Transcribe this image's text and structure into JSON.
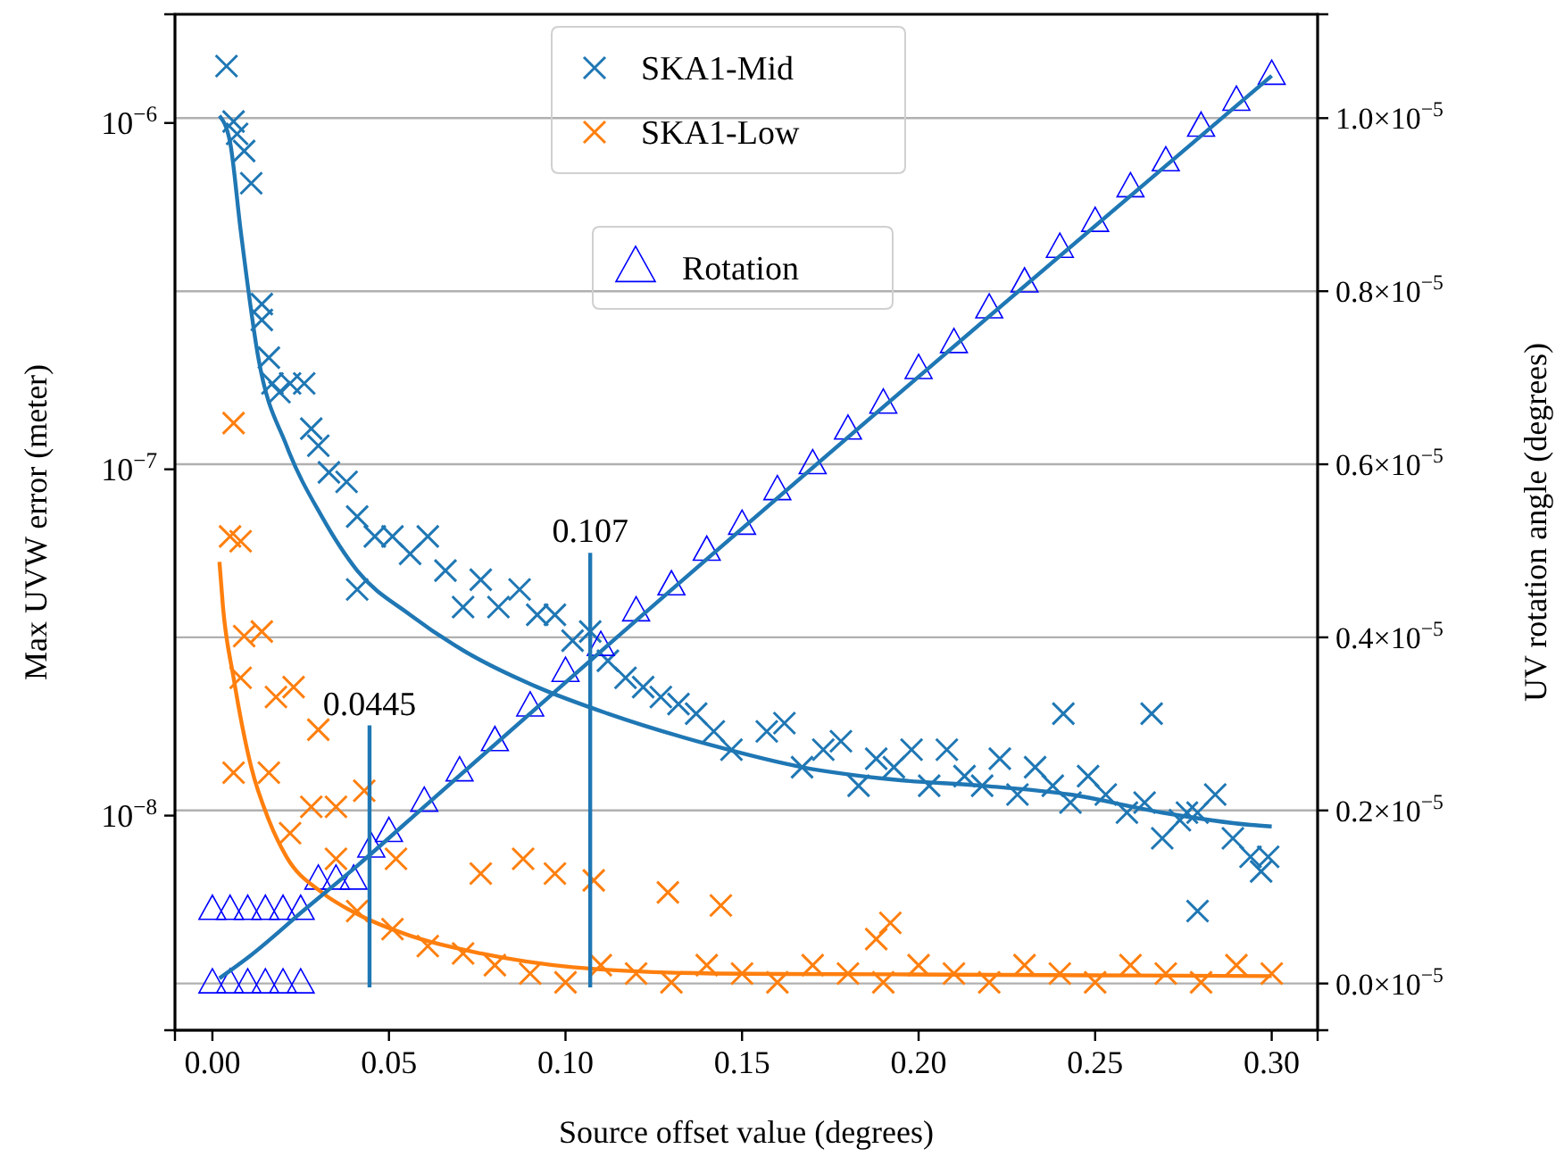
{
  "chart_data": {
    "type": "scatter",
    "xlabel": "Source offset value (degrees)",
    "ylabel": "Max UVW error (meter)",
    "y2label": "UV rotation angle (degrees)",
    "xlim": [
      -0.0106,
      0.313
    ],
    "xticks": [
      {
        "value": 0,
        "label": "0.00"
      },
      {
        "value": 0.05,
        "label": "0.05"
      },
      {
        "value": 0.1,
        "label": "0.10"
      },
      {
        "value": 0.15,
        "label": "0.15"
      },
      {
        "value": 0.2,
        "label": "0.20"
      },
      {
        "value": 0.25,
        "label": "0.25"
      },
      {
        "value": 0.3,
        "label": "0.30"
      }
    ],
    "log": "y",
    "ylim": [
      2.4e-09,
      2.06e-06
    ],
    "yticks": [
      {
        "value": 1e-08,
        "label": "10$^{−8}$"
      },
      {
        "value": 1e-07,
        "label": "10$^{−7}$"
      },
      {
        "value": 1e-06,
        "label": "10$^{−6}$"
      }
    ],
    "y2lim": [
      -5.4e-07,
      1.12e-05
    ],
    "y2ticks": [
      {
        "value": 0,
        "label": "0.0×10$^{−5}$"
      },
      {
        "value": 2e-06,
        "label": "0.2×10$^{−5}$"
      },
      {
        "value": 4e-06,
        "label": "0.4×10$^{−5}$"
      },
      {
        "value": 6e-06,
        "label": "0.6×10$^{−5}$"
      },
      {
        "value": 8e-06,
        "label": "0.8×10$^{−5}$"
      },
      {
        "value": 1e-05,
        "label": "1.0×10$^{−5}$"
      }
    ],
    "grid": "y2",
    "legend": "top",
    "ref_lines": [
      {
        "axis": "x",
        "value": 0.0445,
        "label": "0.0445",
        "color": "#1f77b4"
      },
      {
        "axis": "x",
        "value": 0.107,
        "label": "0.107",
        "color": "#1f77b4"
      }
    ],
    "series": [
      {
        "name": "SKA1-Mid",
        "marker": "cross",
        "color": "#1f77b4",
        "x": [
          0.004,
          0.006,
          0.007,
          0.009,
          0.011,
          0.014,
          0.014,
          0.016,
          0.017,
          0.019,
          0.022,
          0.026,
          0.028,
          0.03,
          0.033,
          0.038,
          0.041,
          0.041,
          0.046,
          0.051,
          0.056,
          0.061,
          0.066,
          0.071,
          0.076,
          0.081,
          0.087,
          0.092,
          0.097,
          0.102,
          0.107,
          0.112,
          0.117,
          0.122,
          0.127,
          0.132,
          0.137,
          0.142,
          0.147,
          0.157,
          0.162,
          0.167,
          0.173,
          0.178,
          0.183,
          0.188,
          0.193,
          0.198,
          0.203,
          0.208,
          0.213,
          0.218,
          0.223,
          0.228,
          0.233,
          0.238,
          0.241,
          0.243,
          0.248,
          0.253,
          0.259,
          0.264,
          0.266,
          0.269,
          0.274,
          0.276,
          0.279,
          0.279,
          0.284,
          0.289,
          0.294,
          0.297,
          0.299
        ],
        "values": [
          1.46e-06,
          1.01e-06,
          9.3e-07,
          8.3e-07,
          6.7e-07,
          3e-07,
          2.7e-07,
          2.1e-07,
          1.77e-07,
          1.67e-07,
          1.77e-07,
          1.77e-07,
          1.31e-07,
          1.17e-07,
          9.8e-08,
          9.2e-08,
          7.3e-08,
          4.5e-08,
          6.4e-08,
          6.4e-08,
          5.7e-08,
          6.4e-08,
          5.1e-08,
          4e-08,
          4.8e-08,
          4e-08,
          4.5e-08,
          3.8e-08,
          3.8e-08,
          3.2e-08,
          3.4e-08,
          2.8e-08,
          2.5e-08,
          2.35e-08,
          2.2e-08,
          2.1e-08,
          1.97e-08,
          1.75e-08,
          1.55e-08,
          1.75e-08,
          1.85e-08,
          1.38e-08,
          1.55e-08,
          1.64e-08,
          1.22e-08,
          1.46e-08,
          1.38e-08,
          1.55e-08,
          1.22e-08,
          1.55e-08,
          1.3e-08,
          1.22e-08,
          1.46e-08,
          1.15e-08,
          1.38e-08,
          1.22e-08,
          1.97e-08,
          1.09e-08,
          1.3e-08,
          1.15e-08,
          1.02e-08,
          1.09e-08,
          1.97e-08,
          8.6e-09,
          9.7e-09,
          1.02e-08,
          5.3e-09,
          1.02e-08,
          1.15e-08,
          8.6e-09,
          7.6e-09,
          6.9e-09,
          7.6e-09
        ]
      },
      {
        "name": "SKA1-Low",
        "marker": "cross",
        "color": "#ff7f0e",
        "x": [
          0.006,
          0.005,
          0.008,
          0.009,
          0.014,
          0.008,
          0.018,
          0.023,
          0.03,
          0.006,
          0.016,
          0.028,
          0.035,
          0.043,
          0.022,
          0.035,
          0.052,
          0.076,
          0.088,
          0.097,
          0.108,
          0.129,
          0.144,
          0.192,
          0.188,
          0.041,
          0.051,
          0.061,
          0.071,
          0.08,
          0.09,
          0.1,
          0.11,
          0.12,
          0.13,
          0.14,
          0.15,
          0.16,
          0.17,
          0.18,
          0.19,
          0.2,
          0.21,
          0.22,
          0.23,
          0.24,
          0.25,
          0.26,
          0.27,
          0.28,
          0.29,
          0.3
        ],
        "values": [
          1.36e-07,
          6.4e-08,
          6.2e-08,
          3.3e-08,
          3.4e-08,
          2.5e-08,
          2.2e-08,
          2.35e-08,
          1.77e-08,
          1.33e-08,
          1.33e-08,
          1.06e-08,
          1.06e-08,
          1.18e-08,
          8.9e-09,
          7.5e-09,
          7.5e-09,
          6.8e-09,
          7.5e-09,
          6.8e-09,
          6.5e-09,
          6e-09,
          5.5e-09,
          4.9e-09,
          4.4e-09,
          5.3e-09,
          4.7e-09,
          4.2e-09,
          4e-09,
          3.7e-09,
          3.5e-09,
          3.3e-09,
          3.7e-09,
          3.5e-09,
          3.3e-09,
          3.7e-09,
          3.5e-09,
          3.3e-09,
          3.7e-09,
          3.5e-09,
          3.3e-09,
          3.7e-09,
          3.5e-09,
          3.3e-09,
          3.7e-09,
          3.5e-09,
          3.3e-09,
          3.7e-09,
          3.5e-09,
          3.3e-09,
          3.7e-09,
          3.5e-09
        ]
      },
      {
        "name": "Rotation",
        "marker": "triangle",
        "axis": "y2",
        "color": "#0000ff",
        "x": [
          0.0,
          0.005,
          0.01,
          0.015,
          0.02,
          0.025,
          0.0,
          0.005,
          0.01,
          0.015,
          0.02,
          0.025,
          0.03,
          0.035,
          0.04,
          0.045,
          0.05,
          0.06,
          0.07,
          0.08,
          0.09,
          0.1,
          0.11,
          0.12,
          0.13,
          0.14,
          0.15,
          0.16,
          0.17,
          0.18,
          0.19,
          0.2,
          0.21,
          0.22,
          0.23,
          0.24,
          0.25,
          0.26,
          0.27,
          0.28,
          0.29,
          0.3
        ],
        "values": [
          0,
          0,
          0,
          0,
          0,
          0,
          8.5e-07,
          8.5e-07,
          8.5e-07,
          8.5e-07,
          8.5e-07,
          8.5e-07,
          1.2e-06,
          1.2e-06,
          1.2e-06,
          1.57e-06,
          1.75e-06,
          2.1e-06,
          2.45e-06,
          2.8e-06,
          3.2e-06,
          3.6e-06,
          3.9e-06,
          4.3e-06,
          4.6e-06,
          5e-06,
          5.3e-06,
          5.7e-06,
          6e-06,
          6.4e-06,
          6.7e-06,
          7.1e-06,
          7.4e-06,
          7.8e-06,
          8.1e-06,
          8.5e-06,
          8.8e-06,
          9.2e-06,
          9.5e-06,
          9.9e-06,
          1.02e-05,
          1.05e-05
        ]
      },
      {
        "type": "line",
        "color": "#1f77b4",
        "x": [
          0.002,
          0.005,
          0.008,
          0.013,
          0.021,
          0.031,
          0.041,
          0.056,
          0.071,
          0.092,
          0.112,
          0.142,
          0.167,
          0.193,
          0.218,
          0.243,
          0.269,
          0.294,
          0.3
        ],
        "values": [
          1.05e-06,
          8.8e-07,
          4.9e-07,
          2.1e-07,
          1.17e-07,
          7.3e-08,
          5.1e-08,
          3.8e-08,
          3e-08,
          2.35e-08,
          1.97e-08,
          1.59e-08,
          1.38e-08,
          1.27e-08,
          1.22e-08,
          1.15e-08,
          1.02e-08,
          9.4e-09,
          9.3e-09
        ]
      },
      {
        "type": "line",
        "color": "#ff7f0e",
        "x": [
          0.002,
          0.003,
          0.006,
          0.011,
          0.016,
          0.021,
          0.031,
          0.041,
          0.056,
          0.076,
          0.102,
          0.142,
          0.193,
          0.3
        ],
        "values": [
          5.4e-08,
          4e-08,
          2.5e-08,
          1.38e-08,
          9.7e-09,
          7.6e-09,
          6e-09,
          5.2e-09,
          4.5e-09,
          4e-09,
          3.65e-09,
          3.5e-09,
          3.48e-09,
          3.44e-09
        ]
      },
      {
        "type": "line",
        "axis": "y2",
        "color": "#1f77b4",
        "x": [
          0.002,
          0.011,
          0.026,
          0.041,
          0.061,
          0.107,
          0.3
        ],
        "values": [
          6e-08,
          3.3e-07,
          8.5e-07,
          1.36e-06,
          2.08e-06,
          3.73e-06,
          1.049e-05
        ]
      }
    ]
  }
}
